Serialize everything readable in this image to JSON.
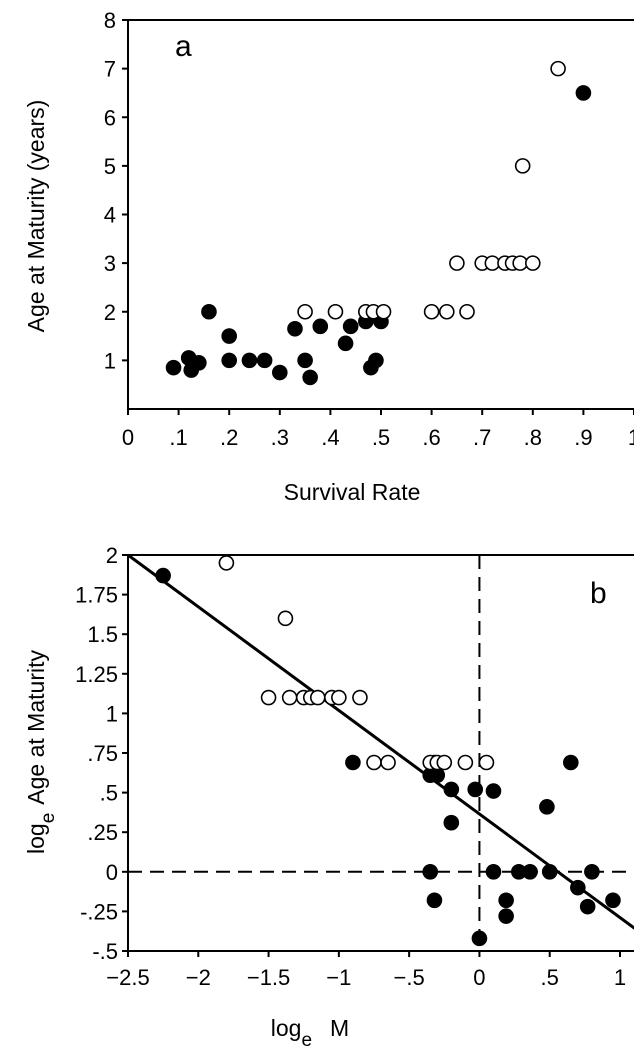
{
  "chart_data": [
    {
      "type": "scatter",
      "panel_label": "a",
      "xlabel": "Survival Rate",
      "ylabel": "Age at Maturity (years)",
      "xlim": [
        0,
        1
      ],
      "ylim": [
        0,
        8
      ],
      "x_ticks": [
        0,
        0.1,
        0.2,
        0.3,
        0.4,
        0.5,
        0.6,
        0.7,
        0.8,
        0.9,
        1
      ],
      "x_tick_labels": [
        "0",
        ".1",
        ".2",
        ".3",
        ".4",
        ".5",
        ".6",
        ".7",
        ".8",
        ".9",
        "1"
      ],
      "y_ticks": [
        1,
        2,
        3,
        4,
        5,
        6,
        7,
        8
      ],
      "y_tick_labels": [
        "1",
        "2",
        "3",
        "4",
        "5",
        "6",
        "7",
        "8"
      ],
      "grid": false,
      "series": [
        {
          "marker": "filled-circle",
          "points": [
            [
              0.09,
              0.85
            ],
            [
              0.12,
              1.05
            ],
            [
              0.125,
              0.8
            ],
            [
              0.14,
              0.95
            ],
            [
              0.16,
              2.0
            ],
            [
              0.2,
              1.5
            ],
            [
              0.2,
              1.0
            ],
            [
              0.24,
              1.0
            ],
            [
              0.27,
              1.0
            ],
            [
              0.3,
              0.75
            ],
            [
              0.33,
              1.65
            ],
            [
              0.35,
              1.0
            ],
            [
              0.36,
              0.65
            ],
            [
              0.38,
              1.7
            ],
            [
              0.43,
              1.35
            ],
            [
              0.44,
              1.7
            ],
            [
              0.47,
              1.8
            ],
            [
              0.48,
              0.85
            ],
            [
              0.49,
              1.0
            ],
            [
              0.5,
              1.8
            ],
            [
              0.9,
              6.5
            ]
          ]
        },
        {
          "marker": "open-circle",
          "points": [
            [
              0.35,
              2.0
            ],
            [
              0.41,
              2.0
            ],
            [
              0.47,
              2.0
            ],
            [
              0.485,
              2.0
            ],
            [
              0.505,
              2.0
            ],
            [
              0.6,
              2.0
            ],
            [
              0.63,
              2.0
            ],
            [
              0.67,
              2.0
            ],
            [
              0.65,
              3.0
            ],
            [
              0.7,
              3.0
            ],
            [
              0.72,
              3.0
            ],
            [
              0.745,
              3.0
            ],
            [
              0.76,
              3.0
            ],
            [
              0.775,
              3.0
            ],
            [
              0.8,
              3.0
            ],
            [
              0.78,
              5.0
            ],
            [
              0.85,
              7.0
            ]
          ]
        }
      ]
    },
    {
      "type": "scatter",
      "panel_label": "b",
      "xlabel_main": "log",
      "xlabel_sub": "e",
      "xlabel_var": "M",
      "ylabel_main": "log",
      "ylabel_sub": "e",
      "ylabel_rest": "Age at Maturity",
      "xlim": [
        -2.5,
        1
      ],
      "ylim": [
        -0.5,
        2
      ],
      "x_ticks": [
        -2.5,
        -2,
        -1.5,
        -1,
        -0.5,
        0,
        0.5,
        1
      ],
      "x_tick_labels": [
        "−2.5",
        "−2",
        "−1.5",
        "−1",
        "−.5",
        "0",
        ".5",
        "1"
      ],
      "y_ticks": [
        -0.5,
        -0.25,
        0,
        0.25,
        0.5,
        0.75,
        1,
        1.25,
        1.5,
        1.75,
        2
      ],
      "y_tick_labels": [
        "-.5",
        "-.25",
        "0",
        ".25",
        ".5",
        ".75",
        "1",
        "1.25",
        "1.5",
        "1.75",
        "2"
      ],
      "grid": false,
      "reference_lines": {
        "x": 0,
        "y": 0,
        "style": "dashed"
      },
      "regression_line": {
        "x": [
          -2.5,
          1.2
        ],
        "y": [
          2.0,
          -0.42
        ]
      },
      "series": [
        {
          "marker": "filled-circle",
          "points": [
            [
              -2.25,
              1.87
            ],
            [
              -0.9,
              0.69
            ],
            [
              -0.35,
              0.61
            ],
            [
              -0.3,
              0.61
            ],
            [
              -0.32,
              0.69
            ],
            [
              -0.2,
              0.52
            ],
            [
              -0.2,
              0.31
            ],
            [
              -0.03,
              0.52
            ],
            [
              0.1,
              0.51
            ],
            [
              -0.35,
              0.0
            ],
            [
              -0.32,
              -0.18
            ],
            [
              0.0,
              -0.42
            ],
            [
              0.1,
              0.0
            ],
            [
              0.19,
              -0.18
            ],
            [
              0.19,
              -0.28
            ],
            [
              0.28,
              0.0
            ],
            [
              0.36,
              0.0
            ],
            [
              0.48,
              0.41
            ],
            [
              0.5,
              0.0
            ],
            [
              0.65,
              0.69
            ],
            [
              0.7,
              -0.1
            ],
            [
              0.77,
              -0.22
            ],
            [
              0.8,
              0.0
            ],
            [
              0.95,
              -0.18
            ]
          ]
        },
        {
          "marker": "open-circle",
          "points": [
            [
              -1.8,
              1.95
            ],
            [
              -1.38,
              1.6
            ],
            [
              -1.5,
              1.1
            ],
            [
              -1.35,
              1.1
            ],
            [
              -1.25,
              1.1
            ],
            [
              -1.2,
              1.1
            ],
            [
              -1.15,
              1.1
            ],
            [
              -1.05,
              1.1
            ],
            [
              -1.0,
              1.1
            ],
            [
              -0.85,
              1.1
            ],
            [
              -0.75,
              0.69
            ],
            [
              -0.65,
              0.69
            ],
            [
              -0.35,
              0.69
            ],
            [
              -0.3,
              0.69
            ],
            [
              -0.25,
              0.69
            ],
            [
              -0.1,
              0.69
            ],
            [
              0.05,
              0.69
            ]
          ]
        }
      ]
    }
  ]
}
